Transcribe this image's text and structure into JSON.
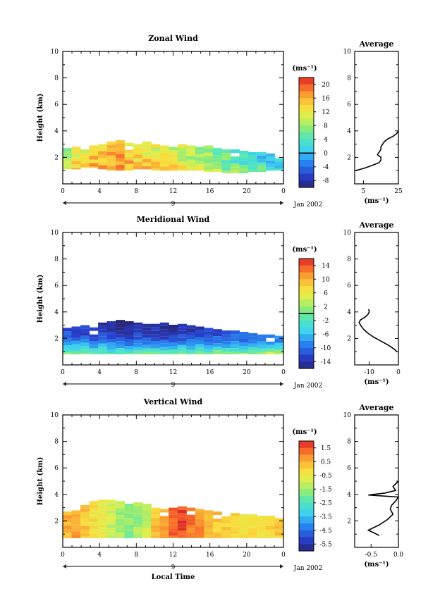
{
  "chart_data": [
    {
      "type": "heatmap",
      "title": "Zonal Wind",
      "ylabel": "Height (km)",
      "xlabel": "",
      "date_label": "Jan 2002",
      "day_label": "9",
      "x_ticks": [
        "0",
        "4",
        "8",
        "12",
        "16",
        "20",
        "0"
      ],
      "xlim": [
        0,
        24
      ],
      "ylim": [
        0,
        10
      ],
      "y_ticks": [
        "2",
        "4",
        "6",
        "8",
        "10"
      ],
      "colorbar": {
        "unit": "(ms⁻¹)",
        "ticks": [
          "20",
          "16",
          "12",
          "8",
          "4",
          "0",
          "-4",
          "-8"
        ],
        "range": [
          -10,
          22
        ],
        "contour_at": 0
      },
      "field": {
        "bottom_km": [
          1.1,
          1.1,
          1.2,
          1.2,
          1.1,
          1.0,
          1.0,
          1.0,
          1.1,
          1.1,
          1.0,
          1.0,
          1.0,
          1.0,
          1.0,
          1.0,
          0.9,
          0.9,
          0.8,
          0.8,
          0.8,
          0.9,
          0.9,
          1.0,
          1.0
        ],
        "top_km": [
          2.7,
          2.8,
          2.6,
          2.9,
          3.0,
          3.2,
          3.3,
          3.1,
          3.0,
          3.2,
          3.0,
          2.9,
          2.8,
          3.0,
          2.9,
          2.8,
          2.9,
          2.7,
          2.6,
          2.6,
          2.5,
          2.4,
          2.4,
          2.3,
          2.2
        ],
        "values_ms": [
          12,
          14,
          15,
          16,
          16,
          17,
          17,
          16,
          15,
          14,
          14,
          13,
          13,
          12,
          11,
          10,
          9,
          8,
          7,
          6,
          5,
          4,
          4,
          3,
          2
        ]
      },
      "average": {
        "title": "Average",
        "xlabel": "(ms⁻¹)",
        "x_ticks": [
          "5",
          "25"
        ],
        "xlim": [
          0,
          25
        ],
        "height_km": [
          1.0,
          1.2,
          1.4,
          1.6,
          1.8,
          2.0,
          2.2,
          2.4,
          2.6,
          2.8,
          3.0,
          3.2,
          3.4,
          3.6,
          3.8,
          4.0
        ],
        "speed_ms": [
          0.5,
          6,
          10,
          14,
          15,
          15,
          13,
          14,
          15,
          15,
          16,
          17,
          19,
          22,
          24,
          25
        ]
      }
    },
    {
      "type": "heatmap",
      "title": "Meridional Wind",
      "ylabel": "Height (km)",
      "xlabel": "",
      "date_label": "Jan 2002",
      "day_label": "9",
      "x_ticks": [
        "0",
        "4",
        "8",
        "12",
        "16",
        "20",
        "0"
      ],
      "xlim": [
        0,
        24
      ],
      "ylim": [
        0,
        10
      ],
      "y_ticks": [
        "2",
        "4",
        "6",
        "8",
        "10"
      ],
      "colorbar": {
        "unit": "(ms⁻¹)",
        "ticks": [
          "14",
          "10",
          "6",
          "2",
          "-2",
          "-6",
          "-10",
          "-14"
        ],
        "range": [
          -16,
          16
        ],
        "contour_at": 0
      },
      "field": {
        "bottom_km": [
          0.8,
          0.8,
          0.8,
          0.8,
          0.8,
          0.8,
          0.8,
          0.8,
          0.8,
          0.8,
          0.8,
          0.8,
          0.8,
          0.8,
          0.8,
          0.8,
          0.8,
          0.8,
          0.8,
          0.8,
          0.8,
          0.8,
          0.8,
          0.8,
          0.8
        ],
        "top_km": [
          2.8,
          2.9,
          3.0,
          3.1,
          3.2,
          3.3,
          3.4,
          3.3,
          3.2,
          3.1,
          3.1,
          3.2,
          3.3,
          3.1,
          3.0,
          2.9,
          2.8,
          2.7,
          2.6,
          2.6,
          2.5,
          2.4,
          2.3,
          2.3,
          2.2
        ],
        "values_ms": [
          -12,
          -13,
          -13,
          -14,
          -14,
          -15,
          -15,
          -15,
          -14,
          -14,
          -14,
          -15,
          -15,
          -14,
          -14,
          -13,
          -13,
          -12,
          -12,
          -11,
          -11,
          -10,
          -10,
          -9,
          -9
        ]
      },
      "average": {
        "title": "Average",
        "xlabel": "(ms⁻¹)",
        "x_ticks": [
          "-10",
          "0"
        ],
        "xlim": [
          -15,
          0
        ],
        "height_km": [
          1.0,
          1.2,
          1.5,
          1.8,
          2.1,
          2.4,
          2.7,
          3.0,
          3.2,
          3.4,
          3.6,
          3.8,
          4.0,
          4.2
        ],
        "speed_ms": [
          -0.5,
          -1.5,
          -3.5,
          -6,
          -8.5,
          -10.5,
          -12,
          -13,
          -13.5,
          -13,
          -11.5,
          -10.5,
          -10,
          -10.2
        ]
      }
    },
    {
      "type": "heatmap",
      "title": "Vertical Wind",
      "ylabel": "Height (km)",
      "xlabel": "Local Time",
      "date_label": "Jan 2002",
      "day_label": "9",
      "x_ticks": [
        "0",
        "4",
        "8",
        "12",
        "16",
        "20",
        "0"
      ],
      "xlim": [
        0,
        24
      ],
      "ylim": [
        0,
        10
      ],
      "y_ticks": [
        "2",
        "4",
        "6",
        "8",
        "10"
      ],
      "colorbar": {
        "unit": "(ms⁻¹)",
        "ticks": [
          "1.5",
          "0.5",
          "-0.5",
          "-1.5",
          "-2.5",
          "-3.5",
          "-4.5",
          "-5.5"
        ],
        "range": [
          -6,
          2
        ]
      },
      "field": {
        "bottom_km": [
          0.7,
          0.7,
          0.7,
          0.7,
          0.7,
          0.7,
          0.7,
          0.7,
          0.7,
          0.7,
          0.7,
          0.7,
          0.7,
          0.7,
          0.7,
          0.7,
          0.7,
          0.7,
          0.7,
          0.7,
          0.7,
          0.7,
          0.7,
          0.7,
          0.7
        ],
        "top_km": [
          2.7,
          2.8,
          3.2,
          3.5,
          3.6,
          3.6,
          3.5,
          3.3,
          3.4,
          3.3,
          3.0,
          2.9,
          3.0,
          3.1,
          3.0,
          2.9,
          2.8,
          2.7,
          2.6,
          2.6,
          2.5,
          2.5,
          2.4,
          2.4,
          2.2
        ],
        "values_ms": [
          0.5,
          0.6,
          0.2,
          -0.2,
          -0.6,
          -1.0,
          -1.4,
          -1.7,
          -1.5,
          -1.0,
          0.2,
          0.5,
          1.4,
          1.6,
          1.2,
          0.8,
          0.4,
          0.2,
          0.1,
          0.0,
          -0.1,
          -0.2,
          -0.2,
          0.0,
          0.1
        ]
      },
      "average": {
        "title": "Average",
        "xlabel": "(ms⁻¹)",
        "x_ticks": [
          "-0.5",
          "0.0"
        ],
        "xlim": [
          -0.8,
          0
        ],
        "height_km": [
          0.9,
          1.3,
          1.7,
          2.1,
          2.5,
          2.9,
          3.2,
          3.5,
          3.8,
          3.95,
          4.1,
          4.3,
          4.6,
          5.0
        ],
        "speed_ms": [
          -0.35,
          -0.55,
          -0.35,
          -0.2,
          -0.1,
          -0.15,
          -0.12,
          -0.05,
          0,
          -0.55,
          -0.25,
          -0.05,
          -0.1,
          0
        ]
      }
    }
  ]
}
